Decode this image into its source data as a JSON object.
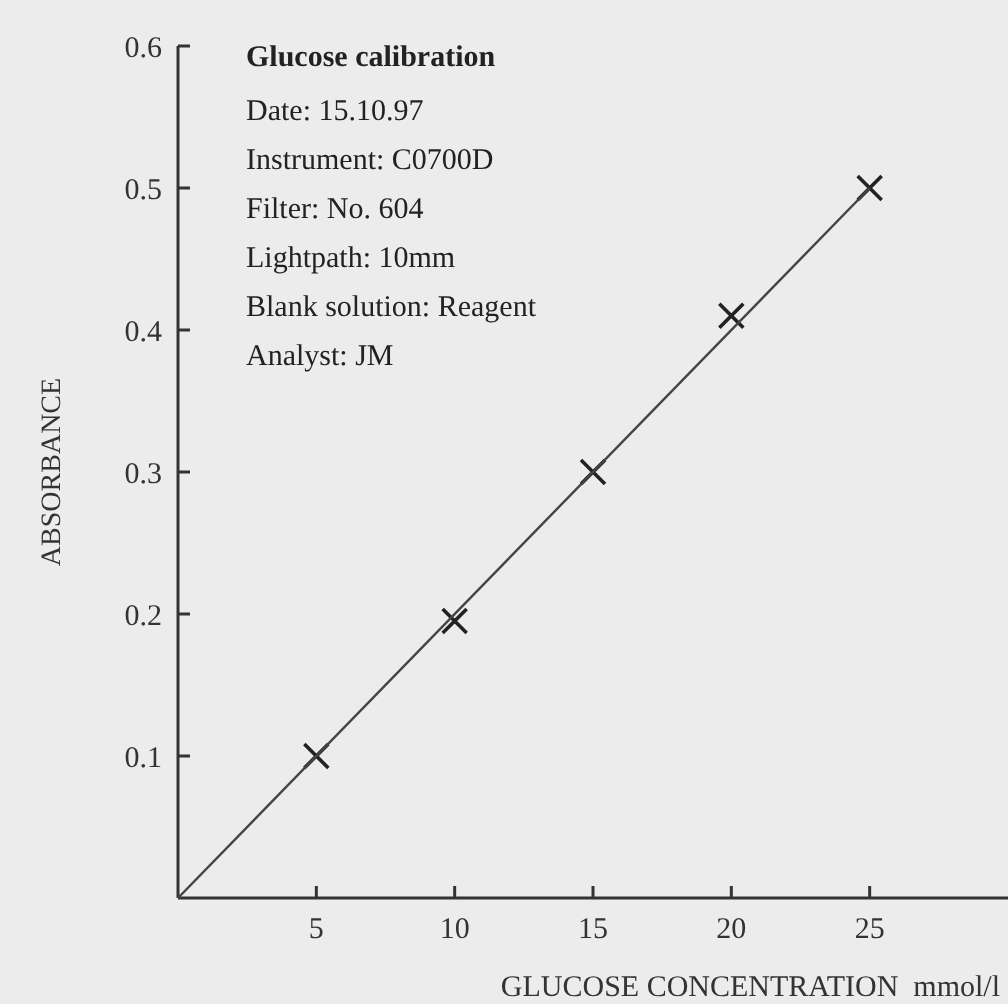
{
  "chart_data": {
    "type": "scatter",
    "title": "Glucose calibration",
    "annotations": [
      "Date: 15.10.97",
      "Instrument: C0700D",
      "Filter: No. 604",
      "Lightpath: 10mm",
      "Blank solution: Reagent",
      "Analyst: JM"
    ],
    "xlabel": "GLUCOSE CONCENTRATION  mmol/l",
    "ylabel": "ABSORBANCE",
    "xlim": [
      0,
      30
    ],
    "ylim": [
      0,
      0.6
    ],
    "xticks": [
      5,
      10,
      15,
      20,
      25
    ],
    "yticks": [
      0.1,
      0.2,
      0.3,
      0.4,
      0.5,
      0.6
    ],
    "grid": false,
    "series": [
      {
        "color": "#222222",
        "marker": "cross",
        "x": [
          5,
          10,
          15,
          20,
          25
        ],
        "values": [
          0.1,
          0.195,
          0.3,
          0.41,
          0.5
        ]
      },
      {
        "type": "line",
        "color": "#444444",
        "marker": "none",
        "line_style": "solid",
        "x": [
          0,
          25
        ],
        "values": [
          0,
          0.5
        ]
      }
    ]
  }
}
